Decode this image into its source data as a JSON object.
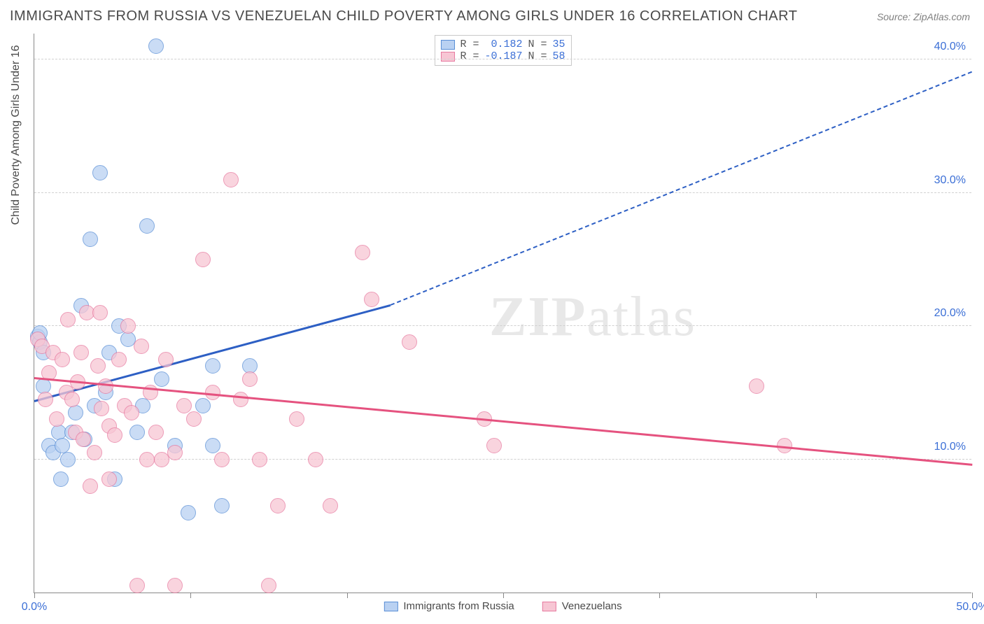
{
  "title": "IMMIGRANTS FROM RUSSIA VS VENEZUELAN CHILD POVERTY AMONG GIRLS UNDER 16 CORRELATION CHART",
  "source_prefix": "Source: ",
  "source_name": "ZipAtlas.com",
  "ylabel": "Child Poverty Among Girls Under 16",
  "watermark": "ZIPatlas",
  "chart": {
    "type": "scatter",
    "background_color": "#ffffff",
    "grid_color": "#d0d0d0",
    "axis_color": "#888888",
    "tick_label_color": "#3b6fd6",
    "marker_radius": 11,
    "marker_opacity": 0.75,
    "xlim": [
      0,
      50
    ],
    "ylim": [
      0,
      42
    ],
    "x_ticks": [
      0,
      8.33,
      16.67,
      25,
      33.33,
      41.67,
      50
    ],
    "x_tick_labels": {
      "0": "0.0%",
      "50": "50.0%"
    },
    "y_grid": [
      10,
      20,
      30,
      40
    ],
    "y_tick_labels": {
      "10": "10.0%",
      "20": "20.0%",
      "30": "30.0%",
      "40": "40.0%"
    }
  },
  "series": [
    {
      "name": "Immigrants from Russia",
      "fill": "#b9d1f2",
      "stroke": "#5a8fd6",
      "line_color": "#2d5fc4",
      "r_label": "R =",
      "r_value": "0.182",
      "n_label": "N =",
      "n_value": "35",
      "trend": {
        "x1": 0,
        "y1": 14.3,
        "x2_solid": 19,
        "y2_solid": 21.5,
        "x2_dash": 50,
        "y2_dash": 39.0
      },
      "points": [
        [
          0.2,
          19.2
        ],
        [
          0.3,
          18.8
        ],
        [
          0.3,
          19.5
        ],
        [
          0.5,
          15.5
        ],
        [
          0.5,
          18.0
        ],
        [
          0.8,
          11.0
        ],
        [
          1.0,
          10.5
        ],
        [
          1.3,
          12.0
        ],
        [
          1.4,
          8.5
        ],
        [
          1.5,
          11.0
        ],
        [
          1.8,
          10.0
        ],
        [
          2.0,
          12.0
        ],
        [
          2.2,
          13.5
        ],
        [
          2.5,
          21.5
        ],
        [
          2.7,
          11.5
        ],
        [
          3.0,
          26.5
        ],
        [
          3.2,
          14.0
        ],
        [
          3.5,
          31.5
        ],
        [
          3.8,
          15.0
        ],
        [
          4.0,
          18.0
        ],
        [
          4.5,
          20.0
        ],
        [
          5.0,
          19.0
        ],
        [
          5.5,
          12.0
        ],
        [
          5.8,
          14.0
        ],
        [
          6.0,
          27.5
        ],
        [
          6.5,
          41.0
        ],
        [
          6.8,
          16.0
        ],
        [
          7.5,
          11.0
        ],
        [
          8.2,
          6.0
        ],
        [
          9.0,
          14.0
        ],
        [
          9.5,
          11.0
        ],
        [
          9.5,
          17.0
        ],
        [
          10.0,
          6.5
        ],
        [
          11.5,
          17.0
        ],
        [
          4.3,
          8.5
        ]
      ]
    },
    {
      "name": "Venezuelans",
      "fill": "#f7c6d4",
      "stroke": "#e77aa0",
      "line_color": "#e5527f",
      "r_label": "R =",
      "r_value": "-0.187",
      "n_label": "N =",
      "n_value": "58",
      "trend": {
        "x1": 0,
        "y1": 16.0,
        "x2_solid": 50,
        "y2_solid": 9.5,
        "x2_dash": 50,
        "y2_dash": 9.5
      },
      "points": [
        [
          0.2,
          19.0
        ],
        [
          0.4,
          18.5
        ],
        [
          0.6,
          14.5
        ],
        [
          0.8,
          16.5
        ],
        [
          1.0,
          18.0
        ],
        [
          1.2,
          13.0
        ],
        [
          1.5,
          17.5
        ],
        [
          1.7,
          15.0
        ],
        [
          1.8,
          20.5
        ],
        [
          2.0,
          14.5
        ],
        [
          2.2,
          12.0
        ],
        [
          2.5,
          18.0
        ],
        [
          2.6,
          11.5
        ],
        [
          2.8,
          21.0
        ],
        [
          3.0,
          8.0
        ],
        [
          3.2,
          10.5
        ],
        [
          3.4,
          17.0
        ],
        [
          3.5,
          21.0
        ],
        [
          3.8,
          15.5
        ],
        [
          4.0,
          12.5
        ],
        [
          4.0,
          8.5
        ],
        [
          4.5,
          17.5
        ],
        [
          4.8,
          14.0
        ],
        [
          5.0,
          20.0
        ],
        [
          5.2,
          13.5
        ],
        [
          5.5,
          0.5
        ],
        [
          6.0,
          10.0
        ],
        [
          6.2,
          15.0
        ],
        [
          6.5,
          12.0
        ],
        [
          6.8,
          10.0
        ],
        [
          7.0,
          17.5
        ],
        [
          7.5,
          10.5
        ],
        [
          7.5,
          0.5
        ],
        [
          8.0,
          14.0
        ],
        [
          8.5,
          13.0
        ],
        [
          9.0,
          25.0
        ],
        [
          9.5,
          15.0
        ],
        [
          10.0,
          10.0
        ],
        [
          10.5,
          31.0
        ],
        [
          11.0,
          14.5
        ],
        [
          11.5,
          16.0
        ],
        [
          12.0,
          10.0
        ],
        [
          12.5,
          0.5
        ],
        [
          13.0,
          6.5
        ],
        [
          14.0,
          13.0
        ],
        [
          15.0,
          10.0
        ],
        [
          15.8,
          6.5
        ],
        [
          17.5,
          25.5
        ],
        [
          18.0,
          22.0
        ],
        [
          20.0,
          18.8
        ],
        [
          24.0,
          13.0
        ],
        [
          24.5,
          11.0
        ],
        [
          38.5,
          15.5
        ],
        [
          40.0,
          11.0
        ],
        [
          3.6,
          13.8
        ],
        [
          4.3,
          11.8
        ],
        [
          5.7,
          18.5
        ],
        [
          2.3,
          15.8
        ]
      ]
    }
  ]
}
